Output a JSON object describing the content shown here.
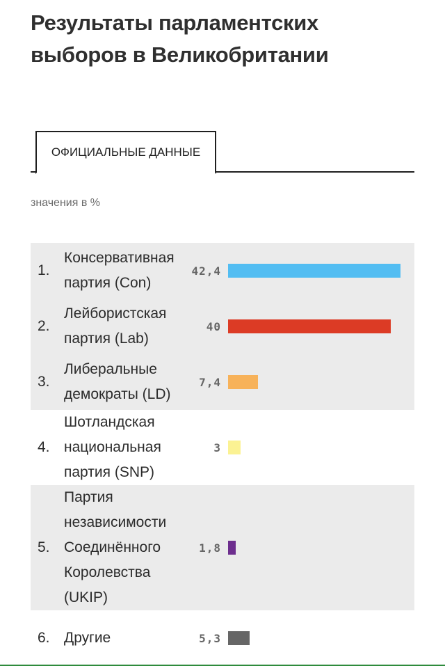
{
  "page": {
    "title": "Результаты парламентских выборов в Великобритании",
    "tab_label": "ОФИЦИАЛЬНЫЕ ДАННЫЕ",
    "units_label": "значения в %"
  },
  "chart_data": {
    "type": "bar",
    "title": "Результаты парламентских выборов в Великобритании",
    "xlabel": "",
    "ylabel": "значения в %",
    "xlim": [
      0,
      42.4
    ],
    "categories": [
      "Консервативная партия (Con)",
      "Лейбористская партия (Lab)",
      "Либеральные демократы (LD)",
      "Шотландская национальная партия (SNP)",
      "Партия независимости Соединённого Королевства (UKIP)",
      "Другие"
    ],
    "ranks": [
      "1.",
      "2.",
      "3.",
      "4.",
      "5.",
      "6."
    ],
    "values": [
      42.4,
      40,
      7.4,
      3,
      1.8,
      5.3
    ],
    "value_labels": [
      "42,4",
      "40",
      "7,4",
      "3",
      "1,8",
      "5,3"
    ],
    "colors": [
      "#52bdf2",
      "#dc3b25",
      "#f7b25a",
      "#fbf293",
      "#6d2e8e",
      "#666666"
    ],
    "shaded": [
      true,
      true,
      true,
      false,
      true,
      false
    ]
  }
}
